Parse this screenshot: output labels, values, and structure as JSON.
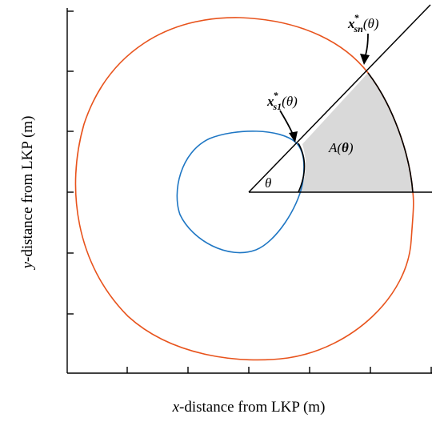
{
  "figure": {
    "x_axis_title": {
      "var": "x",
      "rest": "-distance from LKP (m)"
    },
    "y_axis_title": {
      "var": "y",
      "rest": "-distance from LKP (m)"
    },
    "inner_point_label": {
      "base": "x",
      "sup": "*",
      "sub": "s1",
      "arg": "(θ)"
    },
    "outer_point_label": {
      "base": "x",
      "sup": "*",
      "sub": "sn",
      "arg": "(θ)"
    },
    "area_label": {
      "text": "A(",
      "theta": "θ",
      "close": ")"
    },
    "angle_label": "θ",
    "colors": {
      "outer_contour": "#E8531C",
      "inner_contour": "#1F77C4",
      "shaded_region": "#D9D9D9",
      "axes": "#000000"
    }
  }
}
